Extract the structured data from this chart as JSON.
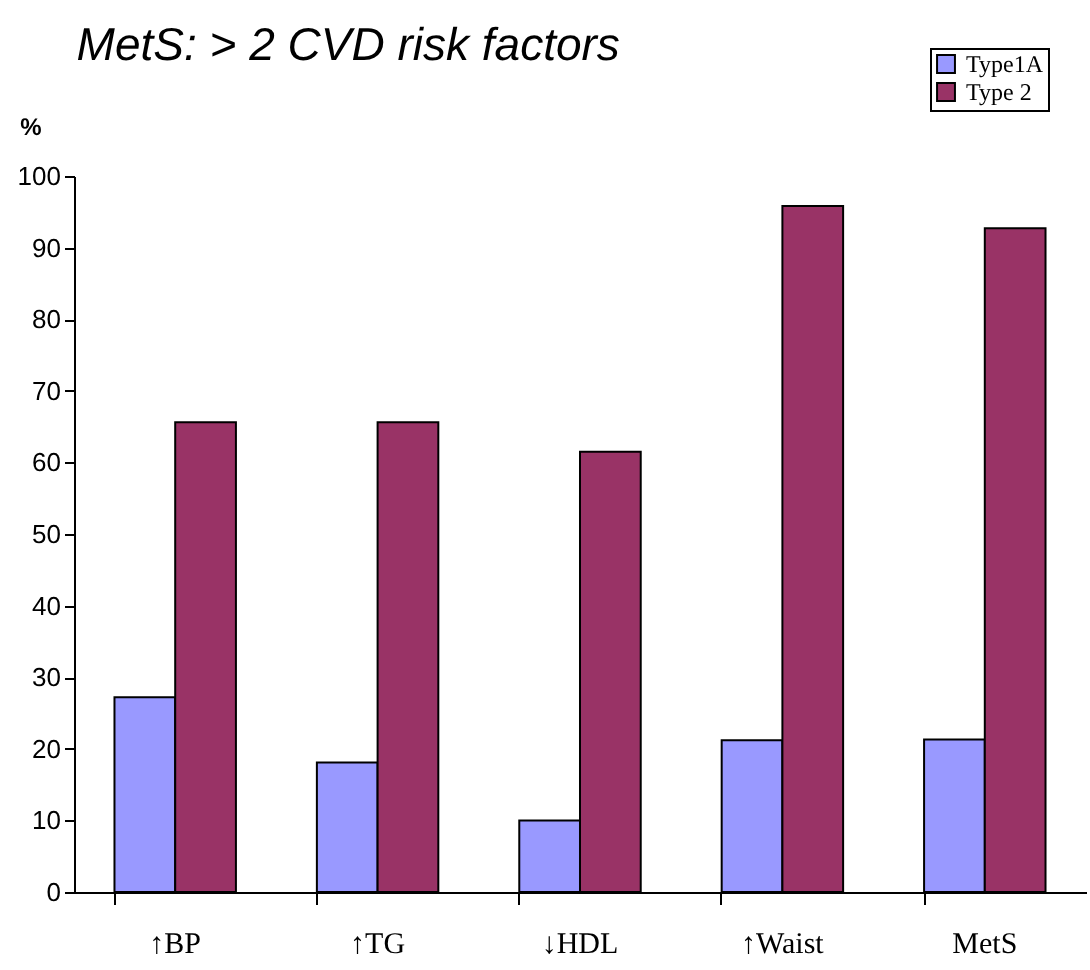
{
  "chart_data": {
    "type": "bar",
    "title": "MetS: > 2 CVD risk factors",
    "ylabel": "%",
    "categories": [
      "↑BP",
      "↑TG",
      "↓HDL",
      "↑Waist",
      "MetS"
    ],
    "series": [
      {
        "name": "Type1A",
        "color": "#9999ff",
        "values": [
          27.2,
          18.1,
          10,
          21.2,
          21.3
        ]
      },
      {
        "name": "Type 2",
        "color": "#993366",
        "values": [
          65.6,
          65.6,
          61.5,
          95.8,
          92.7
        ]
      }
    ],
    "ylim": [
      0,
      100
    ],
    "yticks": [
      0,
      10,
      20,
      30,
      40,
      50,
      60,
      70,
      80,
      90,
      100
    ],
    "legend": "top right"
  }
}
